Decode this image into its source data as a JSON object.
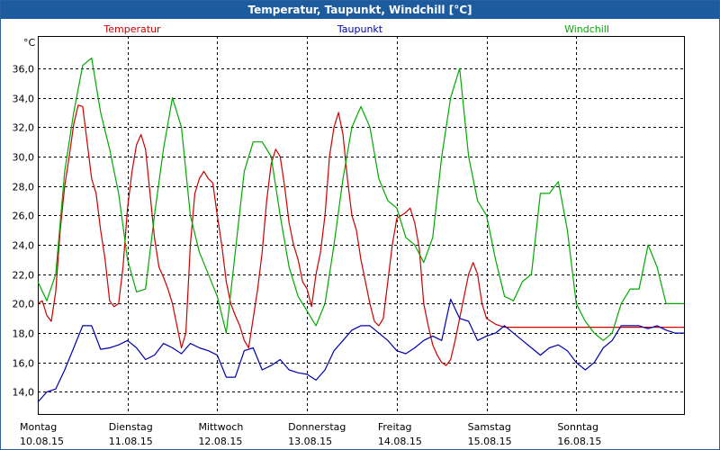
{
  "window": {
    "title": "Temperatur, Taupunkt, Windchill [°C]"
  },
  "chart_data": {
    "type": "line",
    "title": "Temperatur, Taupunkt, Windchill [°C]",
    "ylabel": "°C",
    "ylim": [
      12.5,
      38.2
    ],
    "yticks": [
      14.0,
      16.0,
      18.0,
      20.0,
      22.0,
      24.0,
      26.0,
      28.0,
      30.0,
      32.0,
      34.0,
      36.0
    ],
    "ytick_labels": [
      "14,0",
      "16,0",
      "18,0",
      "20,0",
      "22,0",
      "24,0",
      "26,0",
      "28,0",
      "30,0",
      "32,0",
      "34,0",
      "36,0"
    ],
    "xlim": [
      0,
      7.2
    ],
    "grid": true,
    "legend_placement": "top",
    "days": [
      {
        "day": "Montag",
        "date": "10.08.15"
      },
      {
        "day": "Dienstag",
        "date": "11.08.15"
      },
      {
        "day": "Mittwoch",
        "date": "12.08.15"
      },
      {
        "day": "Donnerstag",
        "date": "13.08.15"
      },
      {
        "day": "Freitag",
        "date": "14.08.15"
      },
      {
        "day": "Samstag",
        "date": "15.08.15"
      },
      {
        "day": "Sonntag",
        "date": "16.08.15"
      }
    ],
    "series": [
      {
        "name": "Temperatur",
        "color": "#cc0000",
        "x": [
          0,
          0.05,
          0.1,
          0.15,
          0.2,
          0.25,
          0.3,
          0.35,
          0.4,
          0.45,
          0.5,
          0.55,
          0.6,
          0.65,
          0.7,
          0.75,
          0.8,
          0.85,
          0.9,
          0.95,
          1.0,
          1.05,
          1.1,
          1.15,
          1.2,
          1.25,
          1.3,
          1.35,
          1.4,
          1.45,
          1.5,
          1.55,
          1.6,
          1.65,
          1.7,
          1.75,
          1.8,
          1.85,
          1.9,
          1.95,
          2.0,
          2.05,
          2.1,
          2.15,
          2.2,
          2.25,
          2.3,
          2.35,
          2.4,
          2.45,
          2.5,
          2.55,
          2.6,
          2.65,
          2.7,
          2.75,
          2.8,
          2.85,
          2.9,
          2.95,
          3.0,
          3.05,
          3.1,
          3.15,
          3.2,
          3.25,
          3.3,
          3.35,
          3.4,
          3.45,
          3.5,
          3.55,
          3.6,
          3.65,
          3.7,
          3.75,
          3.8,
          3.85,
          3.9,
          3.95,
          4.0,
          4.05,
          4.1,
          4.15,
          4.2,
          4.25,
          4.3,
          4.35,
          4.4,
          4.45,
          4.5,
          4.55,
          4.6,
          4.65,
          4.7,
          4.75,
          4.8,
          4.85,
          4.9,
          4.95,
          5.0,
          5.05,
          5.1,
          5.15,
          5.2,
          5.25,
          5.3,
          5.35,
          5.4,
          5.45,
          5.5,
          5.55,
          5.6,
          5.65,
          5.7,
          5.75,
          5.8,
          5.85,
          5.9,
          5.95,
          6.0,
          6.05,
          6.1,
          6.15,
          6.2,
          6.25,
          6.3,
          6.35,
          6.4,
          6.45,
          6.5,
          6.55,
          6.6,
          6.65,
          6.7,
          6.75,
          6.8,
          6.85,
          6.9,
          6.95,
          7.0,
          7.05,
          7.1,
          7.15,
          7.2
        ],
        "values": [
          20.0,
          20.2,
          19.2,
          18.8,
          20.8,
          25.0,
          28.0,
          30.0,
          32.2,
          33.5,
          33.4,
          31.0,
          28.5,
          27.5,
          25.0,
          23.0,
          20.2,
          19.8,
          20.0,
          22.5,
          26.5,
          29.0,
          30.8,
          31.5,
          30.5,
          27.5,
          24.5,
          22.5,
          21.8,
          21.0,
          20.0,
          18.5,
          17.0,
          18.0,
          24.0,
          27.5,
          28.5,
          29.0,
          28.5,
          28.2,
          26.0,
          24.0,
          21.5,
          20.0,
          19.2,
          18.5,
          17.5,
          17.0,
          19.0,
          21.0,
          23.5,
          27.0,
          29.5,
          30.5,
          30.0,
          28.0,
          25.5,
          24.0,
          23.0,
          21.5,
          21.0,
          19.8,
          22.0,
          23.5,
          26.0,
          30.0,
          32.0,
          33.0,
          31.5,
          28.5,
          26.0,
          25.0,
          23.0,
          21.5,
          20.0,
          18.8,
          18.5,
          19.0,
          21.5,
          24.0,
          25.8,
          26.0,
          26.2,
          26.5,
          25.5,
          23.8,
          20.0,
          18.5,
          17.2,
          16.5,
          16.0,
          15.8,
          16.2,
          17.5,
          19.0,
          20.5,
          22.0,
          22.8,
          22.0,
          20.0,
          19.0,
          18.8,
          18.6,
          18.5,
          18.4,
          18.4,
          18.4,
          18.4,
          18.4,
          18.4,
          18.4,
          18.4,
          18.4,
          18.4,
          18.4,
          18.4,
          18.4,
          18.4,
          18.4,
          18.4,
          18.4,
          18.4,
          18.4,
          18.4,
          18.4,
          18.4,
          18.4,
          18.4,
          18.4,
          18.4,
          18.4,
          18.4,
          18.4,
          18.4,
          18.4,
          18.4,
          18.4,
          18.4,
          18.4,
          18.4,
          18.4,
          18.4,
          18.4,
          18.4,
          18.4
        ]
      },
      {
        "name": "Taupunkt",
        "color": "#0000aa",
        "x": [
          0,
          0.1,
          0.2,
          0.3,
          0.4,
          0.5,
          0.6,
          0.7,
          0.8,
          0.9,
          1.0,
          1.1,
          1.2,
          1.3,
          1.4,
          1.5,
          1.6,
          1.7,
          1.8,
          1.9,
          2.0,
          2.1,
          2.2,
          2.3,
          2.4,
          2.5,
          2.6,
          2.7,
          2.8,
          2.9,
          3.0,
          3.1,
          3.2,
          3.3,
          3.4,
          3.5,
          3.6,
          3.7,
          3.8,
          3.9,
          4.0,
          4.1,
          4.2,
          4.3,
          4.4,
          4.5,
          4.6,
          4.7,
          4.8,
          4.9,
          5.0,
          5.1,
          5.2,
          5.3,
          5.4,
          5.5,
          5.6,
          5.7,
          5.8,
          5.9,
          6.0,
          6.1,
          6.2,
          6.3,
          6.4,
          6.5,
          6.6,
          6.7,
          6.8,
          6.9,
          7.0,
          7.1,
          7.2
        ],
        "values": [
          13.3,
          14.0,
          14.2,
          15.5,
          17.0,
          18.5,
          18.5,
          16.9,
          17.0,
          17.2,
          17.5,
          17.0,
          16.2,
          16.5,
          17.3,
          17.0,
          16.6,
          17.3,
          17.0,
          16.8,
          16.5,
          15.0,
          15.0,
          16.8,
          17.0,
          15.5,
          15.8,
          16.2,
          15.5,
          15.3,
          15.2,
          14.8,
          15.5,
          16.8,
          17.5,
          18.2,
          18.5,
          18.5,
          18.0,
          17.5,
          16.8,
          16.6,
          17.0,
          17.5,
          17.8,
          17.5,
          20.3,
          19.0,
          18.8,
          17.5,
          17.8,
          18.0,
          18.5,
          18.0,
          17.5,
          17.0,
          16.5,
          17.0,
          17.2,
          16.8,
          16.0,
          15.5,
          16.0,
          17.0,
          17.5,
          18.5,
          18.5,
          18.5,
          18.3,
          18.5,
          18.2,
          18.0,
          18.0
        ]
      },
      {
        "name": "Windchill",
        "color": "#00aa00",
        "x": [
          0,
          0.1,
          0.2,
          0.3,
          0.4,
          0.5,
          0.6,
          0.7,
          0.8,
          0.9,
          1.0,
          1.1,
          1.2,
          1.3,
          1.4,
          1.5,
          1.6,
          1.7,
          1.8,
          1.9,
          2.0,
          2.1,
          2.2,
          2.3,
          2.4,
          2.5,
          2.6,
          2.7,
          2.8,
          2.9,
          3.0,
          3.1,
          3.2,
          3.3,
          3.4,
          3.5,
          3.6,
          3.7,
          3.8,
          3.9,
          4.0,
          4.1,
          4.2,
          4.3,
          4.4,
          4.5,
          4.6,
          4.7,
          4.8,
          4.9,
          5.0,
          5.1,
          5.2,
          5.3,
          5.4,
          5.5,
          5.6,
          5.7,
          5.8,
          5.9,
          6.0,
          6.1,
          6.2,
          6.3,
          6.4,
          6.5,
          6.6,
          6.7,
          6.8,
          6.9,
          7.0,
          7.1,
          7.2
        ],
        "values": [
          21.5,
          20.2,
          22.0,
          29.0,
          33.0,
          36.2,
          36.7,
          33.0,
          30.5,
          27.5,
          23.0,
          20.8,
          21.0,
          26.0,
          30.5,
          34.0,
          32.0,
          26.0,
          23.5,
          22.0,
          20.5,
          18.0,
          23.5,
          29.0,
          31.0,
          31.0,
          30.0,
          26.0,
          22.5,
          20.5,
          19.5,
          18.5,
          20.0,
          24.0,
          28.5,
          32.0,
          33.4,
          32.0,
          28.5,
          27.0,
          26.5,
          24.5,
          24.0,
          22.8,
          24.5,
          30.0,
          34.0,
          36.0,
          30.0,
          27.0,
          26.0,
          23.0,
          20.5,
          20.2,
          21.5,
          22.0,
          27.5,
          27.5,
          28.3,
          25.0,
          20.0,
          18.8,
          18.0,
          17.5,
          18.0,
          20.0,
          21.0,
          21.0,
          24.0,
          22.5,
          20.0,
          20.0,
          20.0
        ]
      }
    ]
  }
}
